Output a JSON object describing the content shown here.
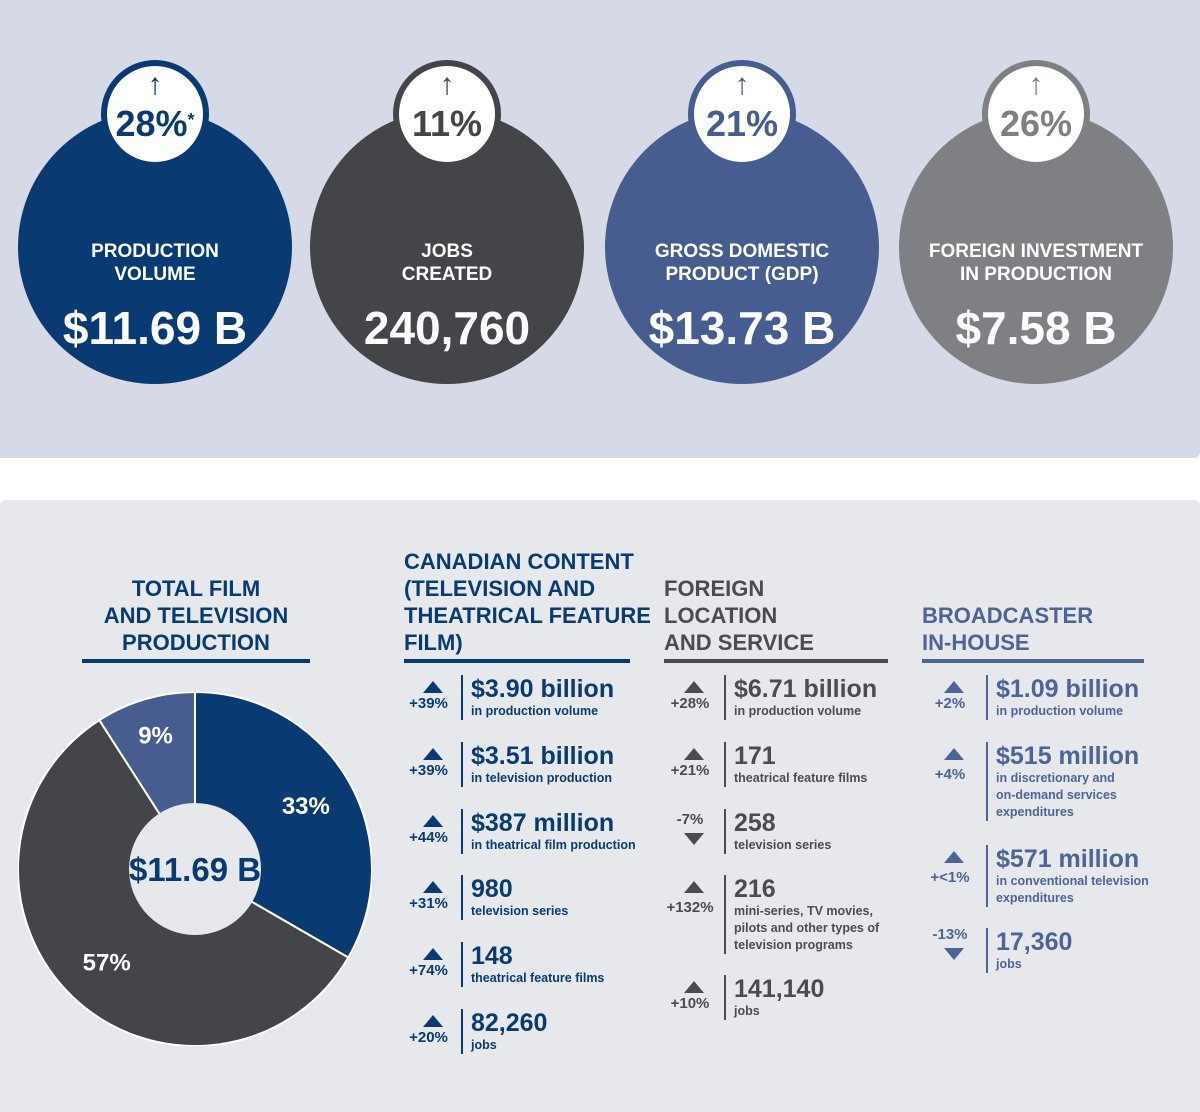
{
  "colors": {
    "navy": "#0a3a72",
    "charcoal": "#434549",
    "slate": "#475d8f",
    "gray": "#7e8084",
    "foreign_text": "#4a4c50",
    "broadcaster_text": "#4e6396"
  },
  "kpis": [
    {
      "arrow": "↑",
      "change": "28%",
      "note": "*",
      "label_line1": "PRODUCTION",
      "label_line2": "VOLUME",
      "value": "$11.69 B",
      "color": "#0a3a72"
    },
    {
      "arrow": "↑",
      "change": "11%",
      "note": "",
      "label_line1": "JOBS",
      "label_line2": "CREATED",
      "value": "240,760",
      "color": "#434549"
    },
    {
      "arrow": "↑",
      "change": "21%",
      "note": "",
      "label_line1": "GROSS DOMESTIC",
      "label_line2": "PRODUCT (GDP)",
      "value": "$13.73 B",
      "color": "#475d8f"
    },
    {
      "arrow": "↑",
      "change": "26%",
      "note": "",
      "label_line1": "FOREIGN INVESTMENT",
      "label_line2": "IN PRODUCTION",
      "value": "$7.58 B",
      "color": "#7e8084"
    }
  ],
  "chart_data": {
    "type": "pie",
    "title": "TOTAL FILM AND TELEVISION PRODUCTION",
    "center_label": "$11.69 B",
    "categories": [
      "Canadian content",
      "Foreign location and service",
      "Broadcaster in-house"
    ],
    "values": [
      33,
      57,
      9
    ],
    "labels": [
      "33%",
      "57%",
      "9%"
    ],
    "colors": [
      "#0a3a72",
      "#434549",
      "#475d8f"
    ]
  },
  "donut": {
    "title_line1": "TOTAL FILM",
    "title_line2": "AND TELEVISION",
    "title_line3": "PRODUCTION"
  },
  "columns": [
    {
      "title_lines": [
        "CANADIAN CONTENT",
        "(TELEVISION AND",
        "THEATRICAL FEATURE",
        "FILM)"
      ],
      "stats": [
        {
          "dir": "up",
          "change": "+39%",
          "value": "$3.90 billion",
          "desc": [
            "in production volume"
          ]
        },
        {
          "dir": "up",
          "change": "+39%",
          "value": "$3.51 billion",
          "desc": [
            "in television production"
          ]
        },
        {
          "dir": "up",
          "change": "+44%",
          "value": "$387 million",
          "desc": [
            "in theatrical film production"
          ]
        },
        {
          "dir": "up",
          "change": "+31%",
          "value": "980",
          "desc": [
            "television series"
          ]
        },
        {
          "dir": "up",
          "change": "+74%",
          "value": "148",
          "desc": [
            "theatrical feature films"
          ]
        },
        {
          "dir": "up",
          "change": "+20%",
          "value": "82,260",
          "desc": [
            "jobs"
          ]
        }
      ]
    },
    {
      "title_lines": [
        "FOREIGN",
        "LOCATION",
        "AND SERVICE"
      ],
      "stats": [
        {
          "dir": "up",
          "change": "+28%",
          "value": "$6.71 billion",
          "desc": [
            "in production volume"
          ]
        },
        {
          "dir": "up",
          "change": "+21%",
          "value": "171",
          "desc": [
            "theatrical feature films"
          ]
        },
        {
          "dir": "down",
          "change": "-7%",
          "value": "258",
          "desc": [
            "television series"
          ]
        },
        {
          "dir": "up",
          "change": "+132%",
          "value": "216",
          "desc": [
            "mini-series, TV movies,",
            "pilots and other types of",
            "television programs"
          ]
        },
        {
          "dir": "up",
          "change": "+10%",
          "value": "141,140",
          "desc": [
            "jobs"
          ]
        }
      ]
    },
    {
      "title_lines": [
        "BROADCASTER",
        "IN-HOUSE"
      ],
      "stats": [
        {
          "dir": "up",
          "change": "+2%",
          "value": "$1.09 billion",
          "desc": [
            "in production volume"
          ]
        },
        {
          "dir": "up",
          "change": "+4%",
          "value": "$515 million",
          "desc": [
            "in discretionary and",
            "on-demand services",
            "expenditures"
          ]
        },
        {
          "dir": "up",
          "change": "+<1%",
          "value": "$571 million",
          "desc": [
            "in conventional television",
            "expenditures"
          ]
        },
        {
          "dir": "down",
          "change": "-13%",
          "value": "17,360",
          "desc": [
            "jobs"
          ]
        }
      ]
    }
  ]
}
